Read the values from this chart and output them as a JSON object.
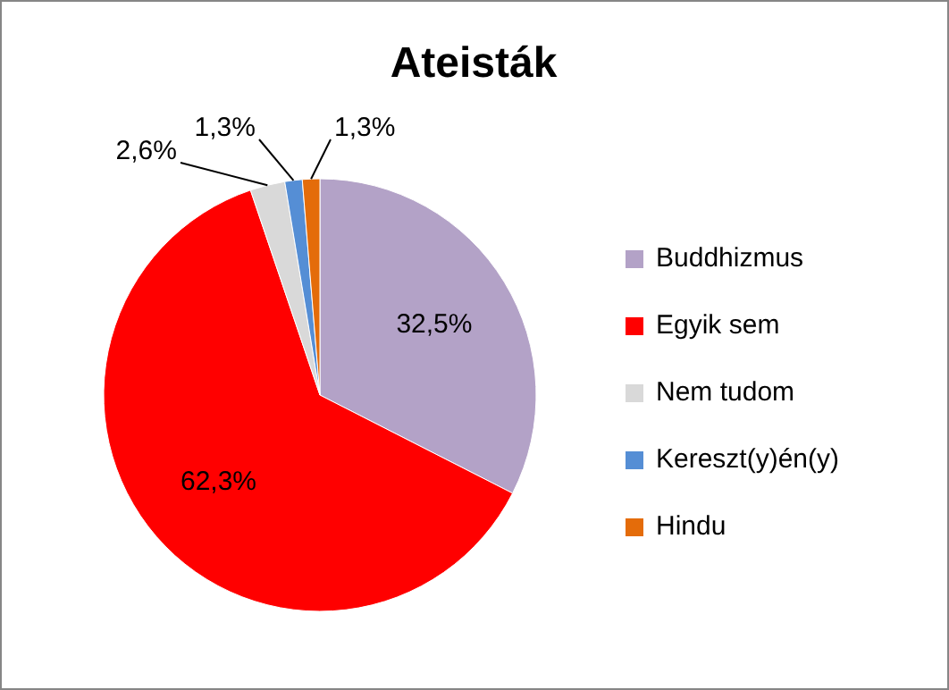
{
  "chart_data": {
    "type": "pie",
    "title": "Ateisták",
    "categories": [
      "Buddhizmus",
      "Egyik sem",
      "Nem tudom",
      "Kereszt(y)én(y)",
      "Hindu"
    ],
    "values": [
      32.5,
      62.3,
      2.6,
      1.3,
      1.3
    ],
    "value_labels": [
      "32,5%",
      "62,3%",
      "2,6%",
      "1,3%",
      "1,3%"
    ],
    "colors": [
      "#b3a2c7",
      "#ff0000",
      "#d9d9d9",
      "#558ed5",
      "#e46c0a"
    ],
    "legend": "right"
  }
}
